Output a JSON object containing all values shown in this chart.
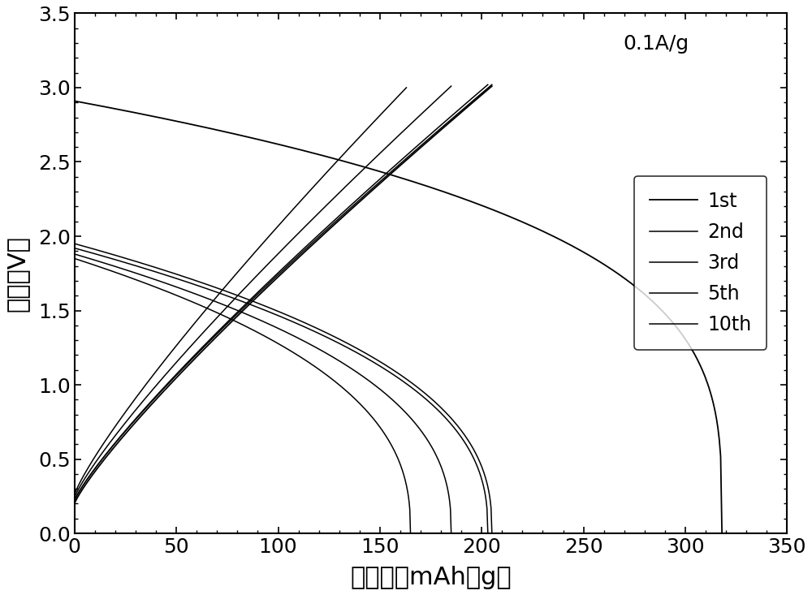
{
  "title_annotation": "0.1A/g",
  "xlabel": "比容量（mAh／g）",
  "ylabel": "电压（V）",
  "xlim": [
    0,
    350
  ],
  "ylim": [
    0,
    3.5
  ],
  "xticks": [
    0,
    50,
    100,
    150,
    200,
    250,
    300,
    350
  ],
  "yticks": [
    0.0,
    0.5,
    1.0,
    1.5,
    2.0,
    2.5,
    3.0,
    3.5
  ],
  "legend_labels": [
    "1st",
    "2nd",
    "3rd",
    "5th",
    "10th"
  ],
  "background_color": "#ffffff",
  "line_color": "#000000"
}
